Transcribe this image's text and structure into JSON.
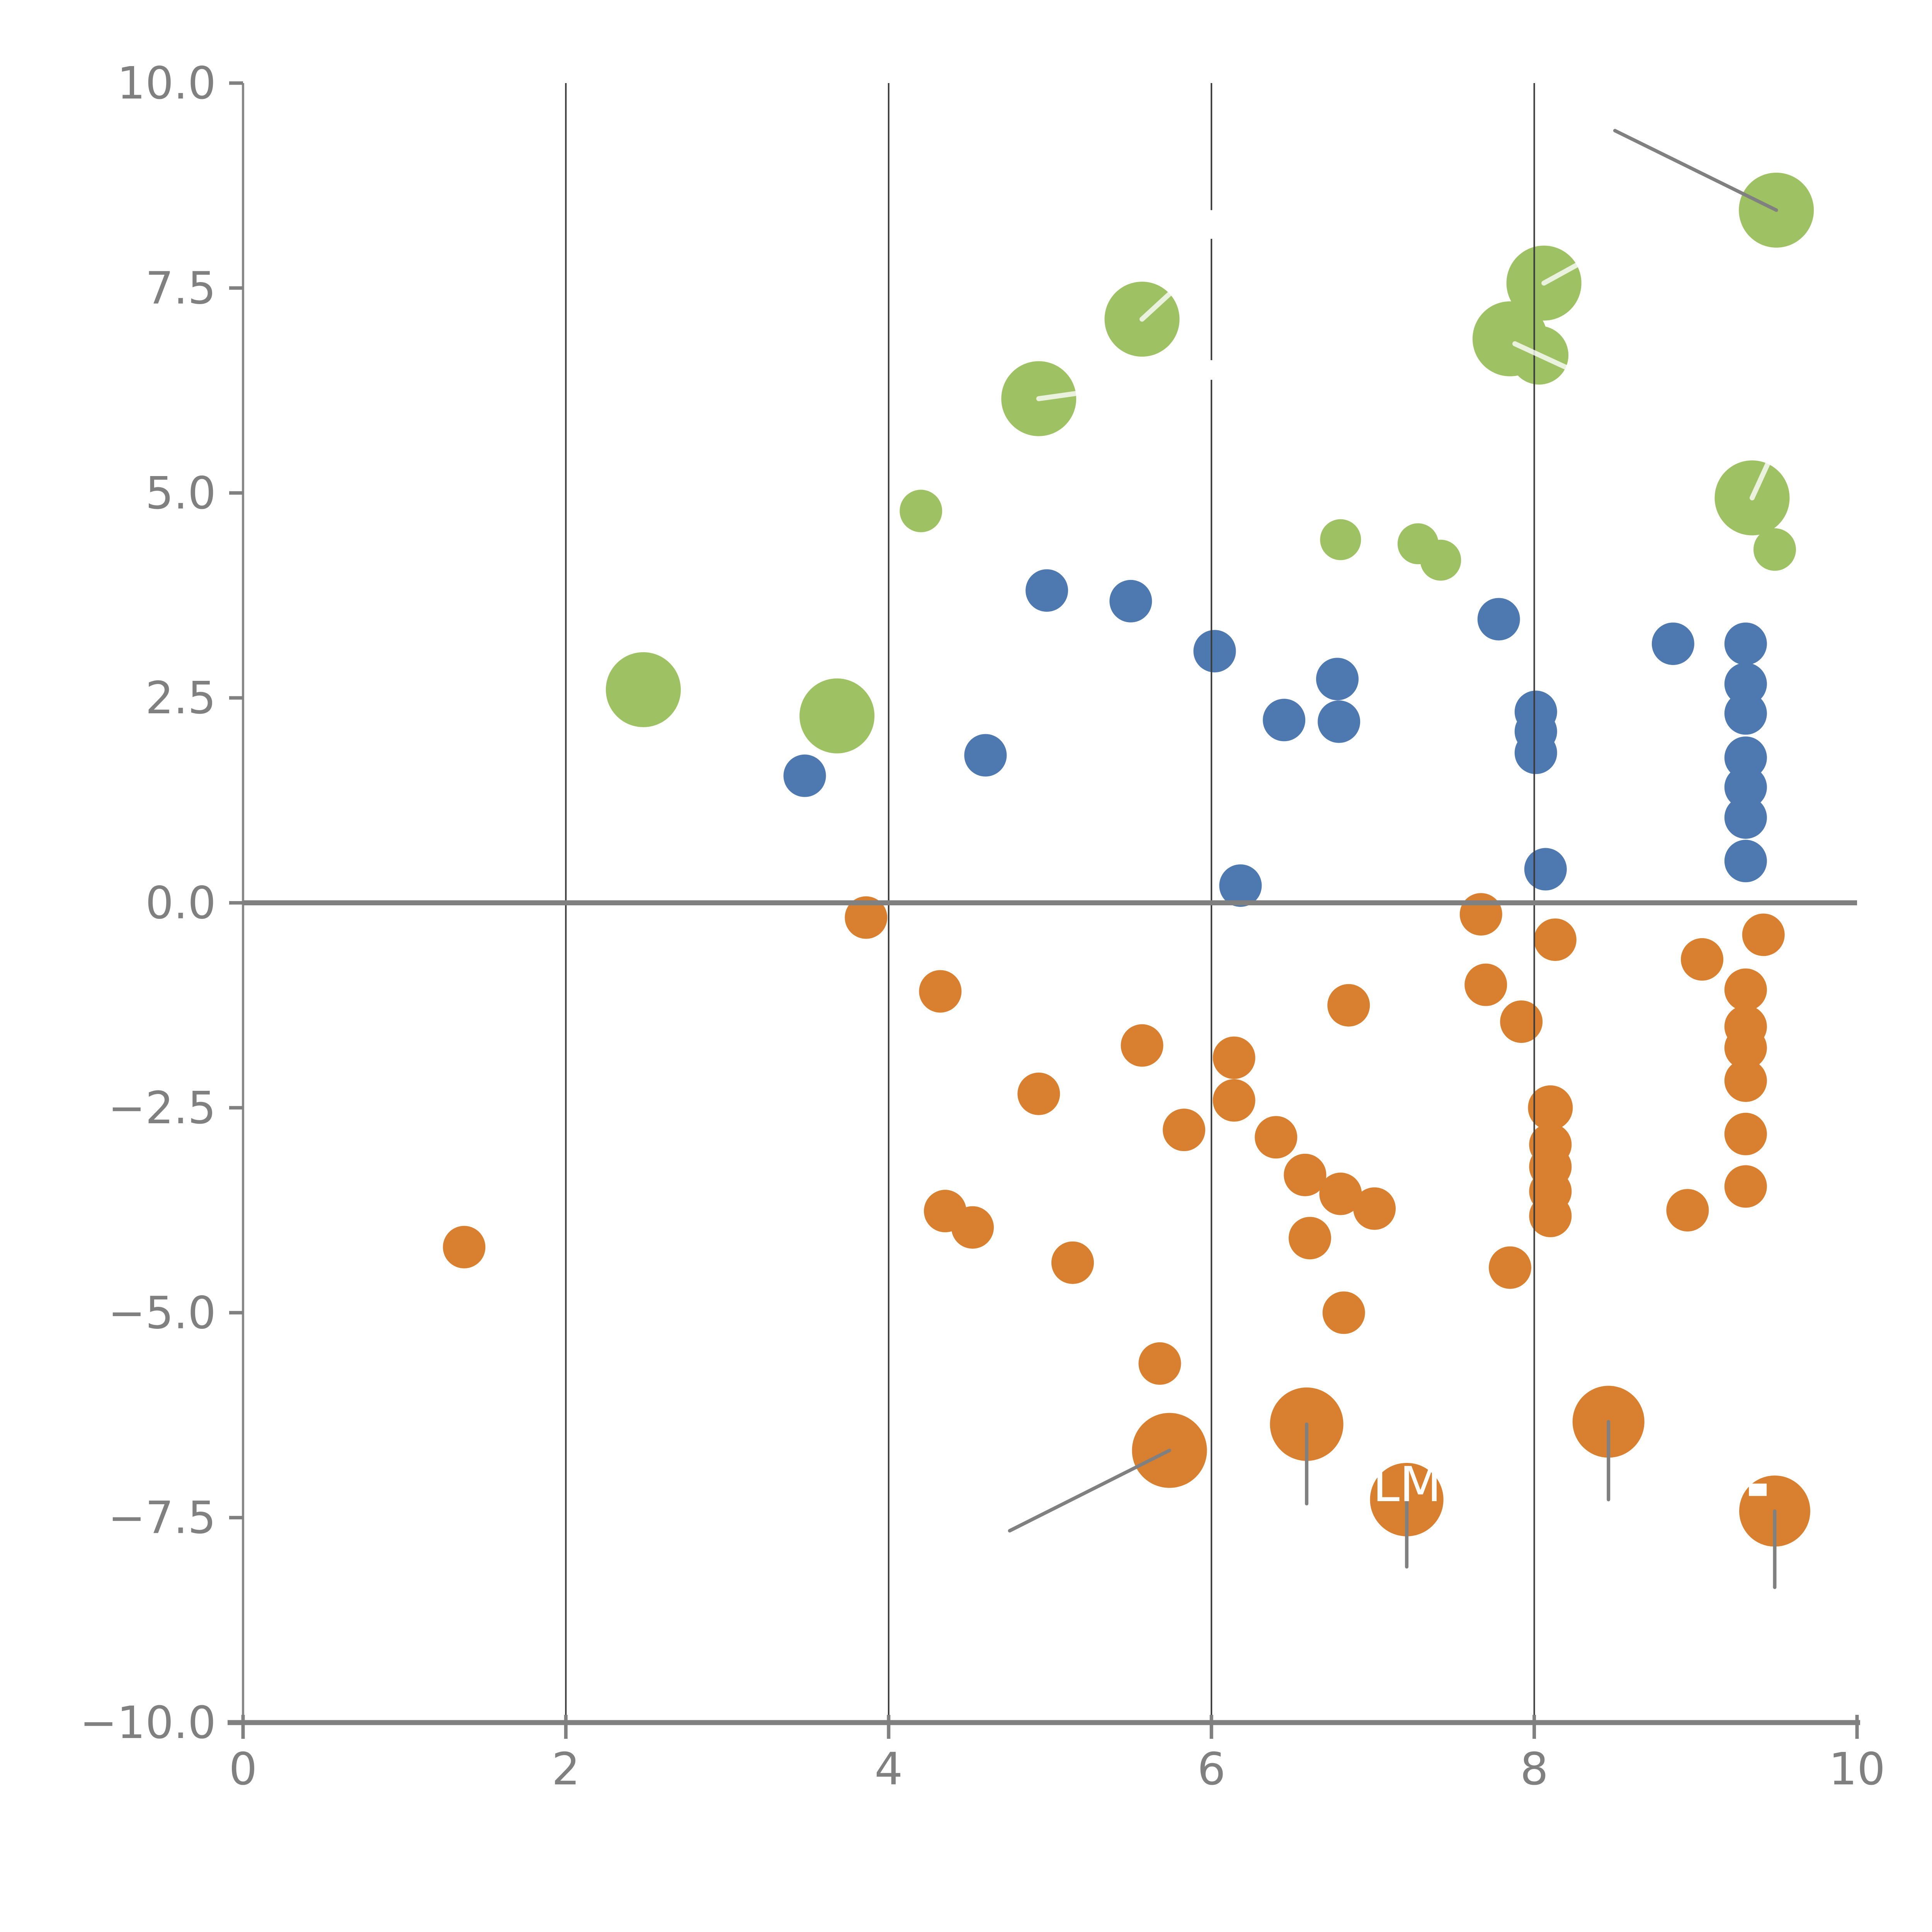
{
  "chart_data": {
    "type": "scatter",
    "title": "",
    "xlabel": "",
    "ylabel": "",
    "xlim": [
      0,
      10
    ],
    "ylim": [
      -10,
      10
    ],
    "x_ticks": [
      0,
      2,
      4,
      6,
      8,
      10
    ],
    "x_tick_labels": [
      "0",
      "2",
      "4",
      "6",
      "8",
      "10"
    ],
    "y_ticks": [
      10.0,
      7.5,
      5.0,
      2.5,
      0.0,
      -2.5,
      -5.0,
      -7.5,
      -10.0
    ],
    "y_tick_labels": [
      "10.0",
      "7.5",
      "5.0",
      "2.5",
      "0.0",
      "−2.5",
      "−5.0",
      "−7.5",
      "−10.0"
    ],
    "grid_x_values": [
      2,
      4,
      6,
      8
    ],
    "zero_line_y": 0,
    "legend_position": "none",
    "colors": {
      "green": "#9EC164",
      "blue": "#4D79B0",
      "orange": "#D8802F",
      "axis_gray": "#808080",
      "gridline_dark": "#3B3B3B",
      "tick_label_gray": "#808080",
      "white_overlay": "#FFFFFF"
    },
    "series": [
      {
        "name": "green",
        "points": [
          {
            "x": 4.2,
            "y": 4.78,
            "r": 55
          },
          {
            "x": 5.57,
            "y": 7.12,
            "r": 97,
            "wline": [
              5.57,
              7.12,
              5.78,
              7.5
            ]
          },
          {
            "x": 4.93,
            "y": 6.15,
            "r": 97,
            "wline": [
              4.93,
              6.15,
              5.33,
              6.26
            ]
          },
          {
            "x": 8.06,
            "y": 7.56,
            "r": 97,
            "wline": [
              8.06,
              7.56,
              8.3,
              7.82
            ]
          },
          {
            "x": 7.85,
            "y": 6.88,
            "r": 97
          },
          {
            "x": 8.03,
            "y": 6.68,
            "r": 76,
            "wline": [
              7.88,
              6.82,
              8.21,
              6.52
            ]
          },
          {
            "x": 9.5,
            "y": 8.45,
            "r": 97
          },
          {
            "x": 9.35,
            "y": 4.94,
            "r": 97,
            "wline": [
              9.35,
              4.94,
              9.45,
              5.37
            ]
          },
          {
            "x": 9.49,
            "y": 4.31,
            "r": 55
          },
          {
            "x": 6.8,
            "y": 4.43,
            "r": 53
          },
          {
            "x": 7.28,
            "y": 4.38,
            "r": 53
          },
          {
            "x": 7.42,
            "y": 4.18,
            "r": 53
          },
          {
            "x": 2.48,
            "y": 2.6,
            "r": 97
          },
          {
            "x": 3.68,
            "y": 2.28,
            "r": 97
          }
        ]
      },
      {
        "name": "blue",
        "points": [
          {
            "x": 3.48,
            "y": 1.55,
            "r": 55
          },
          {
            "x": 4.6,
            "y": 1.8,
            "r": 55
          },
          {
            "x": 4.98,
            "y": 3.81,
            "r": 55
          },
          {
            "x": 5.5,
            "y": 3.68,
            "r": 55
          },
          {
            "x": 6.02,
            "y": 3.07,
            "r": 55
          },
          {
            "x": 6.18,
            "y": 0.21,
            "r": 55
          },
          {
            "x": 6.45,
            "y": 2.23,
            "r": 55
          },
          {
            "x": 6.78,
            "y": 2.73,
            "r": 55
          },
          {
            "x": 6.79,
            "y": 2.21,
            "r": 55
          },
          {
            "x": 7.78,
            "y": 3.46,
            "r": 55
          },
          {
            "x": 8.01,
            "y": 2.33,
            "r": 55
          },
          {
            "x": 8.01,
            "y": 2.09,
            "r": 55
          },
          {
            "x": 8.01,
            "y": 1.83,
            "r": 55
          },
          {
            "x": 8.07,
            "y": 0.41,
            "r": 55
          },
          {
            "x": 8.86,
            "y": 3.16,
            "r": 55
          },
          {
            "x": 9.31,
            "y": 3.16,
            "r": 55
          },
          {
            "x": 9.31,
            "y": 2.67,
            "r": 55
          },
          {
            "x": 9.31,
            "y": 2.31,
            "r": 55
          },
          {
            "x": 9.31,
            "y": 1.77,
            "r": 55
          },
          {
            "x": 9.31,
            "y": 1.41,
            "r": 55
          },
          {
            "x": 9.31,
            "y": 1.04,
            "r": 55
          },
          {
            "x": 9.31,
            "y": 0.51,
            "r": 55
          }
        ]
      },
      {
        "name": "orange",
        "points": [
          {
            "x": 1.37,
            "y": -4.2,
            "r": 55
          },
          {
            "x": 3.86,
            "y": -0.18,
            "r": 55
          },
          {
            "x": 4.32,
            "y": -1.08,
            "r": 55
          },
          {
            "x": 4.35,
            "y": -3.76,
            "r": 55
          },
          {
            "x": 4.52,
            "y": -3.96,
            "r": 55
          },
          {
            "x": 4.93,
            "y": -2.33,
            "r": 55
          },
          {
            "x": 5.14,
            "y": -4.39,
            "r": 55
          },
          {
            "x": 5.57,
            "y": -1.74,
            "r": 55
          },
          {
            "x": 5.83,
            "y": -2.77,
            "r": 55
          },
          {
            "x": 5.68,
            "y": -5.62,
            "r": 55
          },
          {
            "x": 5.74,
            "y": -6.68,
            "r": 97,
            "leader": [
              5.74,
              -6.68,
              4.75,
              -7.66
            ]
          },
          {
            "x": 6.14,
            "y": -1.89,
            "r": 55
          },
          {
            "x": 6.14,
            "y": -2.41,
            "r": 55
          },
          {
            "x": 6.4,
            "y": -2.86,
            "r": 55
          },
          {
            "x": 6.58,
            "y": -3.32,
            "r": 55
          },
          {
            "x": 6.61,
            "y": -4.09,
            "r": 55
          },
          {
            "x": 6.59,
            "y": -6.36,
            "r": 95,
            "leader": [
              6.59,
              -6.36,
              6.59,
              -7.33
            ]
          },
          {
            "x": 6.85,
            "y": -1.25,
            "r": 55
          },
          {
            "x": 6.8,
            "y": -3.55,
            "r": 55
          },
          {
            "x": 7.01,
            "y": -3.73,
            "r": 55
          },
          {
            "x": 6.82,
            "y": -5.0,
            "r": 55
          },
          {
            "x": 7.21,
            "y": -7.28,
            "r": 95,
            "leader": [
              7.21,
              -7.28,
              7.21,
              -8.1
            ],
            "label": "LMH"
          },
          {
            "x": 7.67,
            "y": -0.14,
            "r": 55
          },
          {
            "x": 7.7,
            "y": -1.0,
            "r": 55
          },
          {
            "x": 7.92,
            "y": -1.45,
            "r": 55
          },
          {
            "x": 7.85,
            "y": -4.45,
            "r": 55
          },
          {
            "x": 8.13,
            "y": -0.45,
            "r": 55
          },
          {
            "x": 8.1,
            "y": -2.5,
            "r": 58
          },
          {
            "x": 8.1,
            "y": -2.95,
            "r": 55
          },
          {
            "x": 8.1,
            "y": -3.22,
            "r": 55
          },
          {
            "x": 8.1,
            "y": -3.52,
            "r": 55
          },
          {
            "x": 8.1,
            "y": -3.82,
            "r": 55
          },
          {
            "x": 8.46,
            "y": -6.33,
            "r": 93,
            "leader": [
              8.46,
              -6.33,
              8.46,
              -7.28
            ]
          },
          {
            "x": 8.95,
            "y": -3.75,
            "r": 55
          },
          {
            "x": 9.04,
            "y": -0.69,
            "r": 55
          },
          {
            "x": 9.31,
            "y": -1.06,
            "r": 55
          },
          {
            "x": 9.31,
            "y": -1.51,
            "r": 55
          },
          {
            "x": 9.31,
            "y": -1.77,
            "r": 55
          },
          {
            "x": 9.31,
            "y": -2.17,
            "r": 55
          },
          {
            "x": 9.31,
            "y": -2.82,
            "r": 55
          },
          {
            "x": 9.31,
            "y": -3.46,
            "r": 55
          },
          {
            "x": 9.42,
            "y": -0.39,
            "r": 55
          },
          {
            "x": 9.49,
            "y": -7.42,
            "r": 92,
            "leader": [
              9.49,
              -7.42,
              9.49,
              -8.35
            ]
          }
        ]
      }
    ],
    "annotations": {
      "gray_leader_lines": [
        [
          8.5,
          9.42,
          9.5,
          8.45
        ],
        [
          5.74,
          -6.68,
          4.75,
          -7.66
        ],
        [
          6.59,
          -6.36,
          6.59,
          -7.33
        ],
        [
          7.21,
          -7.28,
          7.21,
          -8.1
        ],
        [
          8.46,
          -6.33,
          8.46,
          -7.28
        ],
        [
          9.49,
          -7.42,
          9.49,
          -8.35
        ]
      ],
      "white_label_text": [
        {
          "text": "LMH",
          "x": 7.21,
          "y": -7.28
        }
      ],
      "white_gridline_gaps": [
        {
          "grid_x": 6,
          "y_from": 8.1,
          "y_to": 8.45
        },
        {
          "grid_x": 6,
          "y_from": 6.38,
          "y_to": 6.62
        }
      ],
      "white_fragment_rects": [
        {
          "x_from": 9.33,
          "x_to": 9.44,
          "y": -7.16
        }
      ]
    },
    "layout_hints": {
      "grid": "vertical-only, drawn above points",
      "zero_line": "thick gray horizontal at y=0",
      "spines": "left and bottom only"
    }
  }
}
